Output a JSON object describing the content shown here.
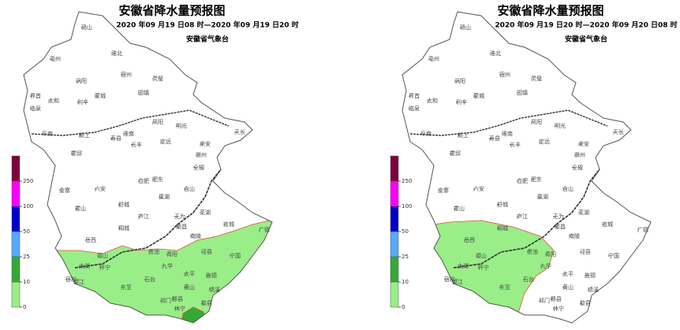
{
  "maps": [
    {
      "title": "安徽省降水量预报图",
      "period": "2020 年09 月19 日08 时—2020 年09 月19 日20 时",
      "agency": "安徽省气象台"
    },
    {
      "title": "安徽省降水量预报图",
      "period": "2020 年09 月19 日20 时—2020 年09 月20 日08 时",
      "agency": "安徽省气象台"
    }
  ],
  "legend": {
    "ticks": [
      0,
      10,
      25,
      50,
      100,
      250
    ],
    "colors": [
      "#99ee88",
      "#33aa33",
      "#55aaff",
      "#0000cc",
      "#ff00ff",
      "#800040"
    ]
  },
  "place_names": [
    "砀山",
    "淮北",
    "亳州",
    "宿州",
    "涡阳",
    "灵璧",
    "界首",
    "太和",
    "利辛",
    "蒙城",
    "固镇",
    "临泉",
    "阜南",
    "颍上",
    "凤阳",
    "明光",
    "淮南",
    "寿县",
    "长丰",
    "定远",
    "天长",
    "来安",
    "滁州",
    "霍邱",
    "全椒",
    "六安",
    "合肥",
    "肥东",
    "含山",
    "巢湖",
    "金寨",
    "舒城",
    "霍山",
    "庐江",
    "无为",
    "芜湖",
    "桐城",
    "岳西",
    "繁昌",
    "南陵",
    "宣城",
    "广德",
    "潜山",
    "贵池",
    "青阳",
    "泾县",
    "宁国",
    "太湖",
    "怀宁",
    "九华",
    "望江",
    "东至",
    "石台",
    "太平",
    "旌德",
    "黄山",
    "绩溪",
    "祁门",
    "黟县",
    "歙县",
    "休宁",
    "宿松"
  ]
}
